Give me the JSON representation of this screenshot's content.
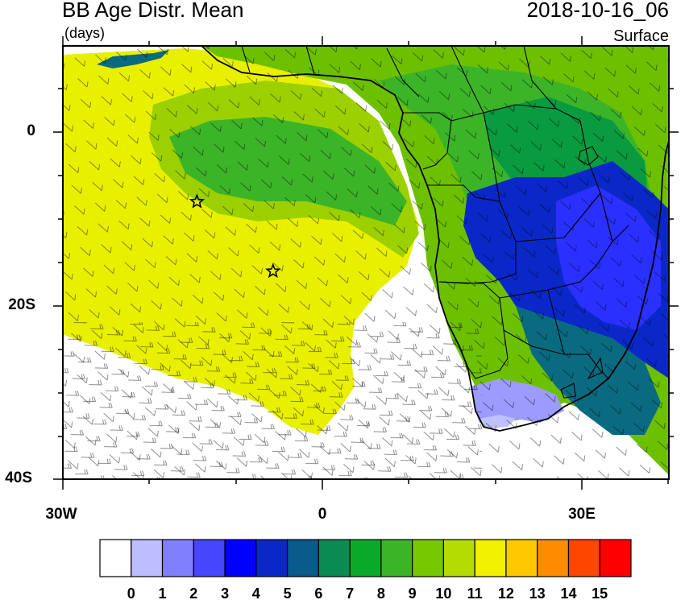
{
  "header": {
    "title": "BB Age Distr. Mean",
    "units": "(days)",
    "datetime": "2018-10-16_06",
    "level": "Surface"
  },
  "axes": {
    "lat_labels": [
      "0",
      "20S",
      "40S"
    ],
    "lon_labels": [
      "30W",
      "0",
      "30E"
    ]
  },
  "colorbar": {
    "labels": [
      "0",
      "1",
      "2",
      "3",
      "4",
      "5",
      "6",
      "7",
      "8",
      "9",
      "10",
      "11",
      "12",
      "13",
      "14",
      "15"
    ],
    "colors": [
      "#ffffff",
      "#bebeff",
      "#8080ff",
      "#4646ff",
      "#0000ff",
      "#0a28c8",
      "#0a5a8c",
      "#0a8c50",
      "#0aaa28",
      "#3cb428",
      "#78c800",
      "#b4dc00",
      "#f0f000",
      "#ffc800",
      "#ff8c00",
      "#ff4600",
      "#ff0000"
    ]
  },
  "map_colors": {
    "ocean_white": "#ffffff",
    "yellow": "#e8f000",
    "yellow_green": "#c8e000",
    "light_green": "#9cd000",
    "green": "#6cc000",
    "mid_green": "#3cb428",
    "dark_green": "#0a9a40",
    "teal": "#0a6a80",
    "blue_dark": "#0a28c8",
    "blue": "#2a30ff",
    "lavender": "#9c9cff",
    "light_lavender": "#c0c0ff"
  },
  "markers": [
    {
      "symbol": "star",
      "lon": -14.5,
      "lat": -8
    },
    {
      "symbol": "star",
      "lon": -5.7,
      "lat": -16
    }
  ]
}
